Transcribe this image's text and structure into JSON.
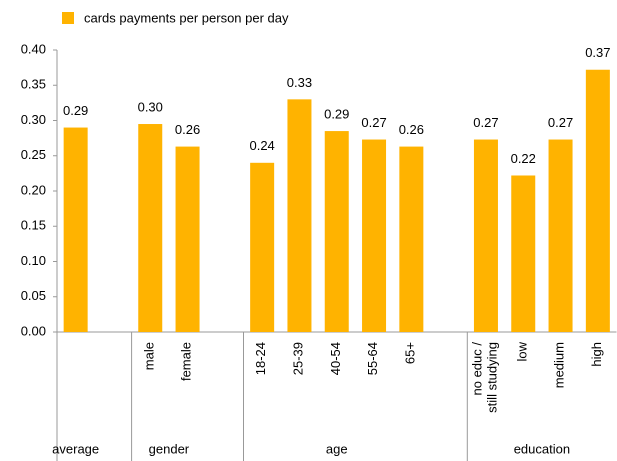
{
  "chart_data": {
    "type": "bar",
    "categories": [
      null,
      null,
      "male",
      "female",
      null,
      "18-24",
      "25-39",
      "40-54",
      "55-64",
      "65+",
      null,
      "no educ /\nstill studying",
      "low",
      "medium",
      "high"
    ],
    "groups": [
      "average",
      "gender",
      "age",
      "education"
    ],
    "series": [
      {
        "name": "cards payments per person per day",
        "color": "#ffb300",
        "values": [
          0.29,
          null,
          0.295,
          0.263,
          null,
          0.24,
          0.33,
          0.285,
          0.273,
          0.263,
          null,
          0.273,
          0.222,
          0.273,
          0.372
        ],
        "value_labels": [
          "0.29",
          null,
          "0.30",
          "0.26",
          null,
          "0.24",
          "0.33",
          "0.29",
          "0.27",
          "0.26",
          null,
          "0.27",
          "0.22",
          "0.27",
          "0.37"
        ]
      }
    ],
    "ylim": [
      0,
      0.4
    ],
    "yticks": [
      {
        "value": 0,
        "label": "0.00"
      },
      {
        "value": 0.05,
        "label": "0.05"
      },
      {
        "value": 0.1,
        "label": "0.10"
      },
      {
        "value": 0.15,
        "label": "0.15"
      },
      {
        "value": 0.2,
        "label": "0.20"
      },
      {
        "value": 0.25,
        "label": "0.25"
      },
      {
        "value": 0.3,
        "label": "0.30"
      },
      {
        "value": 0.35,
        "label": "0.35"
      },
      {
        "value": 0.4,
        "label": "0.40"
      }
    ],
    "grid": false,
    "legend": "top-left"
  }
}
